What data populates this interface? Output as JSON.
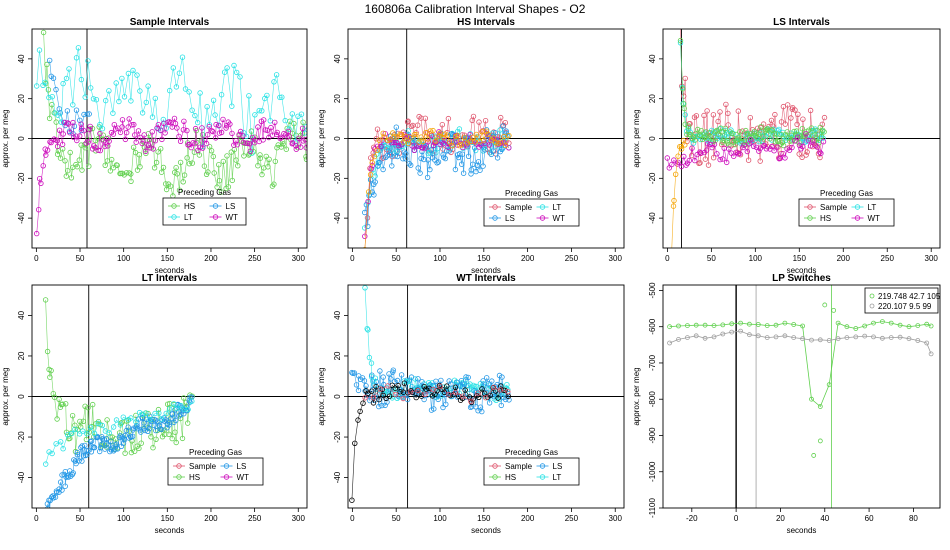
{
  "suptitle": "160806a   Calibration Interval Shapes - O2",
  "colors": {
    "Sample": "#df536b",
    "HS": "#61d04f",
    "LS": "#2297e6",
    "LT": "#28e2e5",
    "WT": "#cd0bbc",
    "extra": "#000000",
    "orange": "#f5a300",
    "gray": "#9e9e9e",
    "cyan_line": "#34c7d8"
  },
  "chart_data": [
    {
      "id": "sample",
      "type": "scatter",
      "title": "Sample Intervals",
      "xlabel": "seconds",
      "ylabel": "approx. per meg",
      "xlim": [
        -5,
        310
      ],
      "ylim": [
        -55,
        55
      ],
      "xticks": [
        0,
        50,
        100,
        150,
        200,
        250,
        300
      ],
      "yticks": [
        -40,
        -20,
        0,
        20,
        40
      ],
      "vline": 58,
      "legend": {
        "title": "Preceding Gas",
        "entries": [
          "HS",
          "LS",
          "LT",
          "WT"
        ]
      },
      "series": [
        {
          "name": "HS",
          "n": 150,
          "x0": 8,
          "x1": 310,
          "start": 55,
          "end": -3,
          "tau": 5,
          "mid": -10,
          "noise": 9,
          "wave": 8
        },
        {
          "name": "LS",
          "n": 18,
          "x0": 15,
          "x1": 60,
          "start": 35,
          "end": 5,
          "tau": 15,
          "mid": 2,
          "noise": 8,
          "wave": 3
        },
        {
          "name": "LT",
          "n": 90,
          "x0": 0,
          "x1": 310,
          "start": 28,
          "end": 8,
          "tau": 80,
          "mid": 10,
          "noise": 14,
          "wave": 10
        },
        {
          "name": "WT",
          "n": 160,
          "x0": 0,
          "x1": 310,
          "start": -50,
          "end": 2,
          "tau": 6,
          "mid": 0,
          "noise": 6,
          "wave": 3
        }
      ]
    },
    {
      "id": "hs",
      "type": "scatter",
      "title": "HS Intervals",
      "xlabel": "seconds",
      "ylabel": "approx. per meg",
      "xlim": [
        -5,
        310
      ],
      "ylim": [
        -55,
        55
      ],
      "xticks": [
        0,
        50,
        100,
        150,
        200,
        250,
        300
      ],
      "yticks": [
        -40,
        -20,
        0,
        20,
        40
      ],
      "vline": 62,
      "legend": {
        "title": "Preceding Gas",
        "entries": [
          "Sample",
          "LT",
          "LS",
          "WT"
        ]
      },
      "series": [
        {
          "name": "Sample",
          "n": 80,
          "x0": 15,
          "x1": 178,
          "start": -50,
          "end": 2,
          "tau": 6,
          "mid": 0,
          "noise": 9,
          "wave": 2
        },
        {
          "name": "LT",
          "n": 80,
          "x0": 15,
          "x1": 178,
          "start": -45,
          "end": -2,
          "tau": 8,
          "mid": 0,
          "noise": 5,
          "wave": 2
        },
        {
          "name": "LS",
          "n": 110,
          "x0": 15,
          "x1": 178,
          "start": -40,
          "end": -3,
          "tau": 10,
          "mid": -5,
          "noise": 10,
          "wave": 3
        },
        {
          "name": "WT",
          "n": 60,
          "x0": 15,
          "x1": 178,
          "start": -45,
          "end": -1,
          "tau": 6,
          "mid": 0,
          "noise": 4,
          "wave": 1
        },
        {
          "name": "orange",
          "n": 60,
          "x0": 15,
          "x1": 178,
          "start": -55,
          "end": 0,
          "tau": 5,
          "mid": 0,
          "noise": 3,
          "wave": 1
        }
      ]
    },
    {
      "id": "ls",
      "type": "scatter",
      "title": "LS Intervals",
      "xlabel": "seconds",
      "ylabel": "approx. per meg",
      "xlim": [
        -5,
        310
      ],
      "ylim": [
        -55,
        55
      ],
      "xticks": [
        0,
        50,
        100,
        150,
        200,
        250,
        300
      ],
      "yticks": [
        -40,
        -20,
        0,
        20,
        40
      ],
      "vline": 16,
      "legend": {
        "title": "Preceding Gas",
        "entries": [
          "Sample",
          "LT",
          "HS",
          "WT"
        ]
      },
      "series": [
        {
          "name": "Sample",
          "n": 90,
          "x0": 15,
          "x1": 178,
          "start": 50,
          "end": 2,
          "tau": 4,
          "mid": 0,
          "noise": 14,
          "wave": 2
        },
        {
          "name": "LT",
          "n": 90,
          "x0": 15,
          "x1": 178,
          "start": 50,
          "end": 1,
          "tau": 3,
          "mid": 0,
          "noise": 3,
          "wave": 1
        },
        {
          "name": "HS",
          "n": 110,
          "x0": 15,
          "x1": 178,
          "start": 50,
          "end": 1,
          "tau": 3,
          "mid": 0,
          "noise": 4,
          "wave": 1
        },
        {
          "name": "WT",
          "n": 70,
          "x0": 0,
          "x1": 178,
          "start": -12,
          "end": -2,
          "tau": 40,
          "mid": -3,
          "noise": 4,
          "wave": 2
        },
        {
          "name": "orange",
          "n": 10,
          "x0": 5,
          "x1": 20,
          "start": -55,
          "end": 0,
          "tau": 4,
          "mid": 0,
          "noise": 2,
          "wave": 0
        }
      ]
    },
    {
      "id": "lt",
      "type": "scatter",
      "title": "LT Intervals",
      "xlabel": "seconds",
      "ylabel": "approx. per meg",
      "xlim": [
        -5,
        310
      ],
      "ylim": [
        -55,
        55
      ],
      "xticks": [
        0,
        50,
        100,
        150,
        200,
        250,
        300
      ],
      "yticks": [
        -40,
        -20,
        0,
        20,
        40
      ],
      "vline": 60,
      "legend": {
        "title": "Preceding Gas",
        "entries": [
          "Sample",
          "LS",
          "HS",
          "WT"
        ]
      },
      "series": [
        {
          "name": "HS",
          "n": 90,
          "x0": 10,
          "x1": 178,
          "start": 55,
          "end": -5,
          "tau": 6,
          "mid": -15,
          "noise": 12,
          "wave": 3
        },
        {
          "name": "LS",
          "n": 140,
          "x0": 12,
          "x1": 178,
          "start": -55,
          "end": -2,
          "tau": 40,
          "mid": -12,
          "noise": 4,
          "wave": 2
        },
        {
          "name": "LT",
          "n": 40,
          "x0": 10,
          "x1": 178,
          "start": -30,
          "end": -2,
          "tau": 40,
          "mid": -8,
          "noise": 3,
          "wave": 1
        }
      ]
    },
    {
      "id": "wt",
      "type": "scatter",
      "title": "WT Intervals",
      "xlabel": "seconds",
      "ylabel": "approx. per meg",
      "xlim": [
        -5,
        310
      ],
      "ylim": [
        -55,
        55
      ],
      "xticks": [
        0,
        50,
        100,
        150,
        200,
        250,
        300
      ],
      "yticks": [
        -40,
        -20,
        0,
        20,
        40
      ],
      "vline": 63,
      "legend": {
        "title": "Preceding Gas",
        "entries": [
          "Sample",
          "LS",
          "HS",
          "LT"
        ]
      },
      "series": [
        {
          "name": "LT",
          "n": 110,
          "x0": 15,
          "x1": 178,
          "start": 55,
          "end": 2,
          "tau": 4,
          "mid": 2,
          "noise": 4,
          "wave": 1
        },
        {
          "name": "LS",
          "n": 110,
          "x0": 0,
          "x1": 178,
          "start": 10,
          "end": 2,
          "tau": 40,
          "mid": 0,
          "noise": 9,
          "wave": 2
        },
        {
          "name": "extra",
          "n": 60,
          "x0": 0,
          "x1": 178,
          "start": -55,
          "end": 2,
          "tau": 4,
          "mid": 0,
          "noise": 4,
          "wave": 1
        },
        {
          "name": "Sample",
          "n": 20,
          "x0": 15,
          "x1": 178,
          "start": 2,
          "end": 1,
          "tau": 20,
          "mid": 0,
          "noise": 3,
          "wave": 1
        }
      ]
    },
    {
      "id": "lp",
      "type": "line",
      "title": "LP Switches",
      "xlabel": "seconds",
      "ylabel": "approx. per meg",
      "xlim": [
        -33,
        92
      ],
      "ylim": [
        -1100,
        -485
      ],
      "xticks": [
        -20,
        0,
        20,
        40,
        60,
        80
      ],
      "yticks": [
        -1100,
        -1000,
        -900,
        -800,
        -700,
        -600,
        -500
      ],
      "vlines": [
        0,
        9,
        43
      ],
      "legend": {
        "entries": [
          "219.748 42.7 105",
          "220.107 9.5 99"
        ]
      },
      "series": [
        {
          "name": "219.748 42.7 105",
          "x": [
            -30,
            -26,
            -22,
            -18,
            -14,
            -10,
            -6,
            -2,
            2,
            6,
            10,
            14,
            18,
            22,
            26,
            30,
            34,
            38,
            42,
            46,
            50,
            54,
            58,
            62,
            66,
            70,
            74,
            78,
            82,
            86,
            88
          ],
          "y": [
            -600,
            -598,
            -597,
            -596,
            -596,
            -597,
            -595,
            -592,
            -590,
            -593,
            -594,
            -597,
            -596,
            -590,
            -594,
            -598,
            -800,
            -820,
            -760,
            -590,
            -600,
            -605,
            -598,
            -590,
            -586,
            -590,
            -596,
            -600,
            -597,
            -593,
            -598
          ]
        },
        {
          "name": "220.107 9.5 99",
          "x": [
            -30,
            -26,
            -22,
            -18,
            -14,
            -10,
            -6,
            -2,
            2,
            6,
            10,
            14,
            18,
            22,
            26,
            30,
            34,
            38,
            42,
            46,
            50,
            54,
            58,
            62,
            66,
            70,
            74,
            78,
            82,
            86,
            88
          ],
          "y": [
            -645,
            -635,
            -630,
            -625,
            -632,
            -628,
            -620,
            -615,
            -612,
            -622,
            -625,
            -630,
            -628,
            -625,
            -630,
            -633,
            -637,
            -636,
            -638,
            -633,
            -630,
            -628,
            -626,
            -628,
            -632,
            -630,
            -629,
            -633,
            -638,
            -645,
            -675
          ]
        }
      ],
      "outliers": [
        {
          "x": 35,
          "y": -955
        },
        {
          "x": 38,
          "y": -915
        },
        {
          "x": 40,
          "y": -540
        },
        {
          "x": 44,
          "y": -555
        }
      ]
    }
  ]
}
